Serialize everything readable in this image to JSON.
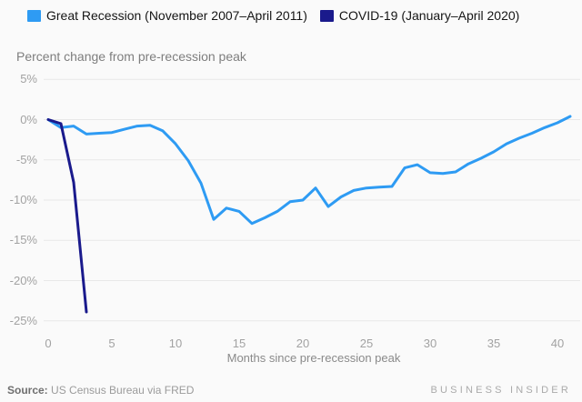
{
  "chart_data": {
    "type": "line",
    "title": "Percent change from pre-recession peak",
    "xlabel": "Months since pre-recession peak",
    "legend_position": "top",
    "grid": true,
    "x_axis": {
      "ticks": [
        0,
        5,
        10,
        15,
        20,
        25,
        30,
        35,
        40
      ],
      "range": [
        0,
        41.8
      ]
    },
    "y_axis": {
      "unit": "%",
      "range": [
        -25,
        5
      ],
      "ticks": [
        {
          "label": "5%",
          "value": 5
        },
        {
          "label": "0%",
          "value": 0
        },
        {
          "label": "-5%",
          "value": -5
        },
        {
          "label": "-10%",
          "value": -10
        },
        {
          "label": "-15%",
          "value": -15
        },
        {
          "label": "-20%",
          "value": -20
        },
        {
          "label": "-25%",
          "value": -25
        }
      ]
    },
    "series": [
      {
        "name": "Great Recession (November 2007–April 2011)",
        "color": "#2e9bf3",
        "months": [
          0,
          1,
          2,
          3,
          4,
          5,
          6,
          7,
          8,
          9,
          10,
          11,
          12,
          13,
          14,
          15,
          16,
          17,
          18,
          19,
          20,
          21,
          22,
          23,
          24,
          25,
          26,
          27,
          28,
          29,
          30,
          31,
          32,
          33,
          34,
          35,
          36,
          37,
          38,
          39,
          40,
          41
        ],
        "values": [
          0,
          -1.0,
          -0.8,
          -1.8,
          -1.7,
          -1.6,
          -1.2,
          -0.8,
          -0.7,
          -1.4,
          -3.0,
          -5.1,
          -7.9,
          -12.4,
          -11.0,
          -11.4,
          -12.9,
          -12.2,
          -11.4,
          -10.2,
          -10.0,
          -8.5,
          -10.8,
          -9.6,
          -8.8,
          -8.5,
          -8.4,
          -8.3,
          -6.0,
          -5.6,
          -6.6,
          -6.7,
          -6.5,
          -5.5,
          -4.8,
          -4.0,
          -3.0,
          -2.3,
          -1.7,
          -1.0,
          -0.4,
          0.4
        ]
      },
      {
        "name": "COVID-19 (January–April 2020)",
        "color": "#1a1a8c",
        "months": [
          0,
          1,
          2,
          3
        ],
        "values": [
          0,
          -0.5,
          -7.8,
          -23.9
        ]
      }
    ]
  },
  "footer": {
    "source_prefix": "Source:",
    "source_text": " US Census Bureau via FRED",
    "brand": "BUSINESS INSIDER"
  }
}
